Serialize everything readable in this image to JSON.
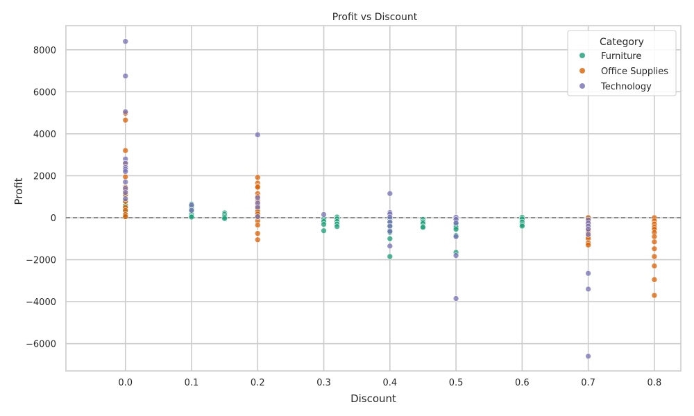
{
  "chart_data": {
    "type": "scatter",
    "title": "Profit vs Discount",
    "xlabel": "Discount",
    "ylabel": "Profit",
    "xlim": [
      -0.09,
      0.84
    ],
    "ylim": [
      -7300,
      9150
    ],
    "x_ticks": [
      0.0,
      0.1,
      0.2,
      0.3,
      0.4,
      0.5,
      0.6,
      0.7,
      0.8
    ],
    "x_tick_labels": [
      "0.0",
      "0.1",
      "0.2",
      "0.3",
      "0.4",
      "0.5",
      "0.6",
      "0.7",
      "0.8"
    ],
    "y_ticks": [
      -6000,
      -4000,
      -2000,
      0,
      2000,
      4000,
      6000,
      8000
    ],
    "y_tick_labels": [
      "−6000",
      "−4000",
      "−2000",
      "0",
      "2000",
      "4000",
      "6000",
      "8000"
    ],
    "grid": true,
    "reference_line": {
      "y": 0,
      "style": "dashed",
      "color": "#808080"
    },
    "legend": {
      "title": "Category",
      "placement": "top-right"
    },
    "series": [
      {
        "name": "Furniture",
        "color": "#1b9e77",
        "points": [
          [
            0.0,
            1050
          ],
          [
            0.0,
            800
          ],
          [
            0.0,
            600
          ],
          [
            0.0,
            450
          ],
          [
            0.0,
            300
          ],
          [
            0.0,
            120
          ],
          [
            0.0,
            40
          ],
          [
            0.1,
            650
          ],
          [
            0.1,
            520
          ],
          [
            0.1,
            420
          ],
          [
            0.1,
            300
          ],
          [
            0.1,
            180
          ],
          [
            0.1,
            90
          ],
          [
            0.1,
            30
          ],
          [
            0.15,
            230
          ],
          [
            0.15,
            160
          ],
          [
            0.15,
            90
          ],
          [
            0.15,
            20
          ],
          [
            0.15,
            -40
          ],
          [
            0.2,
            380
          ],
          [
            0.2,
            160
          ],
          [
            0.2,
            20
          ],
          [
            0.3,
            -60
          ],
          [
            0.3,
            -180
          ],
          [
            0.3,
            -320
          ],
          [
            0.3,
            -620
          ],
          [
            0.32,
            30
          ],
          [
            0.32,
            -60
          ],
          [
            0.32,
            -180
          ],
          [
            0.32,
            -300
          ],
          [
            0.32,
            -420
          ],
          [
            0.4,
            -50
          ],
          [
            0.4,
            -250
          ],
          [
            0.4,
            -400
          ],
          [
            0.4,
            -600
          ],
          [
            0.4,
            -700
          ],
          [
            0.4,
            -1000
          ],
          [
            0.4,
            -1850
          ],
          [
            0.45,
            -80
          ],
          [
            0.45,
            -200
          ],
          [
            0.45,
            -280
          ],
          [
            0.45,
            -420
          ],
          [
            0.45,
            -460
          ],
          [
            0.5,
            -100
          ],
          [
            0.5,
            -200
          ],
          [
            0.5,
            -330
          ],
          [
            0.5,
            -450
          ],
          [
            0.5,
            -550
          ],
          [
            0.5,
            -850
          ],
          [
            0.5,
            -1650
          ],
          [
            0.6,
            20
          ],
          [
            0.6,
            -60
          ],
          [
            0.6,
            -200
          ],
          [
            0.6,
            -330
          ],
          [
            0.6,
            -400
          ],
          [
            0.7,
            -20
          ]
        ]
      },
      {
        "name": "Office Supplies",
        "color": "#d95f02",
        "points": [
          [
            0.0,
            4980
          ],
          [
            0.0,
            4650
          ],
          [
            0.0,
            3200
          ],
          [
            0.0,
            2550
          ],
          [
            0.0,
            1950
          ],
          [
            0.0,
            1450
          ],
          [
            0.0,
            1300
          ],
          [
            0.0,
            1100
          ],
          [
            0.0,
            780
          ],
          [
            0.0,
            500
          ],
          [
            0.0,
            350
          ],
          [
            0.0,
            150
          ],
          [
            0.0,
            50
          ],
          [
            0.2,
            1920
          ],
          [
            0.2,
            1650
          ],
          [
            0.2,
            1500
          ],
          [
            0.2,
            1450
          ],
          [
            0.2,
            1150
          ],
          [
            0.2,
            1000
          ],
          [
            0.2,
            800
          ],
          [
            0.2,
            600
          ],
          [
            0.2,
            450
          ],
          [
            0.2,
            300
          ],
          [
            0.2,
            180
          ],
          [
            0.2,
            60
          ],
          [
            0.2,
            -150
          ],
          [
            0.2,
            -350
          ],
          [
            0.2,
            -750
          ],
          [
            0.2,
            -1050
          ],
          [
            0.7,
            0
          ],
          [
            0.7,
            -100
          ],
          [
            0.7,
            -300
          ],
          [
            0.7,
            -550
          ],
          [
            0.7,
            -700
          ],
          [
            0.7,
            -900
          ],
          [
            0.7,
            -1000
          ],
          [
            0.7,
            -1200
          ],
          [
            0.7,
            -1300
          ],
          [
            0.8,
            0
          ],
          [
            0.8,
            -150
          ],
          [
            0.8,
            -300
          ],
          [
            0.8,
            -450
          ],
          [
            0.8,
            -550
          ],
          [
            0.8,
            -700
          ],
          [
            0.8,
            -900
          ],
          [
            0.8,
            -1150
          ],
          [
            0.8,
            -1480
          ],
          [
            0.8,
            -1850
          ],
          [
            0.8,
            -2300
          ],
          [
            0.8,
            -2950
          ],
          [
            0.8,
            -3700
          ]
        ]
      },
      {
        "name": "Technology",
        "color": "#7570b3",
        "points": [
          [
            0.0,
            8400
          ],
          [
            0.0,
            6750
          ],
          [
            0.0,
            5050
          ],
          [
            0.0,
            2800
          ],
          [
            0.0,
            2600
          ],
          [
            0.0,
            2400
          ],
          [
            0.0,
            2300
          ],
          [
            0.0,
            2200
          ],
          [
            0.0,
            1700
          ],
          [
            0.0,
            1400
          ],
          [
            0.0,
            1200
          ],
          [
            0.0,
            900
          ],
          [
            0.1,
            600
          ],
          [
            0.1,
            350
          ],
          [
            0.2,
            3950
          ],
          [
            0.2,
            950
          ],
          [
            0.2,
            700
          ],
          [
            0.2,
            500
          ],
          [
            0.2,
            50
          ],
          [
            0.3,
            150
          ],
          [
            0.4,
            1150
          ],
          [
            0.4,
            250
          ],
          [
            0.4,
            180
          ],
          [
            0.4,
            30
          ],
          [
            0.4,
            -200
          ],
          [
            0.4,
            -400
          ],
          [
            0.4,
            -650
          ],
          [
            0.4,
            -1350
          ],
          [
            0.5,
            20
          ],
          [
            0.5,
            -80
          ],
          [
            0.5,
            -250
          ],
          [
            0.5,
            -900
          ],
          [
            0.5,
            -1800
          ],
          [
            0.5,
            -3850
          ],
          [
            0.7,
            -100
          ],
          [
            0.7,
            -250
          ],
          [
            0.7,
            -400
          ],
          [
            0.7,
            -550
          ],
          [
            0.7,
            -800
          ],
          [
            0.7,
            -2650
          ],
          [
            0.7,
            -3400
          ],
          [
            0.7,
            -6600
          ]
        ]
      }
    ]
  }
}
